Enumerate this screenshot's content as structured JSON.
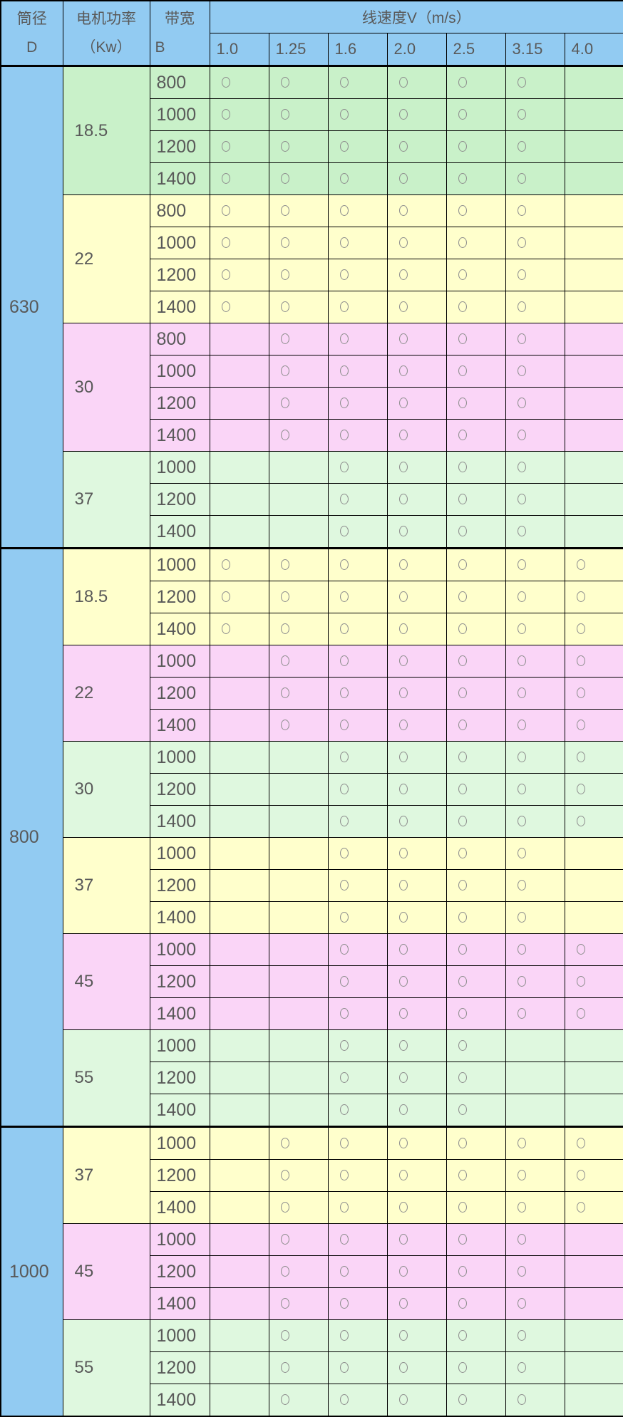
{
  "table": {
    "header": {
      "col1_line1": "筒径",
      "col1_line2": "D",
      "col2_line1": "电机功率",
      "col2_line2": "（Kw）",
      "col3_line1": "带宽",
      "col3_line2": "B",
      "speed_title": "线速度V（m/s）",
      "speeds": [
        "1.0",
        "1.25",
        "1.6",
        "2.0",
        "2.5",
        "3.15",
        "4.0"
      ]
    },
    "available_marker": "circle-outline",
    "groups": [
      {
        "diameter": "630",
        "powers": [
          {
            "power": "18.5",
            "color": "green_dark",
            "rows": [
              {
                "width": "800",
                "marks": [
                  1,
                  1,
                  1,
                  1,
                  1,
                  1,
                  0
                ]
              },
              {
                "width": "1000",
                "marks": [
                  1,
                  1,
                  1,
                  1,
                  1,
                  1,
                  0
                ]
              },
              {
                "width": "1200",
                "marks": [
                  1,
                  1,
                  1,
                  1,
                  1,
                  1,
                  0
                ]
              },
              {
                "width": "1400",
                "marks": [
                  1,
                  1,
                  1,
                  1,
                  1,
                  1,
                  0
                ]
              }
            ]
          },
          {
            "power": "22",
            "color": "yellow",
            "rows": [
              {
                "width": "800",
                "marks": [
                  1,
                  1,
                  1,
                  1,
                  1,
                  1,
                  0
                ]
              },
              {
                "width": "1000",
                "marks": [
                  1,
                  1,
                  1,
                  1,
                  1,
                  1,
                  0
                ]
              },
              {
                "width": "1200",
                "marks": [
                  1,
                  1,
                  1,
                  1,
                  1,
                  1,
                  0
                ]
              },
              {
                "width": "1400",
                "marks": [
                  1,
                  1,
                  1,
                  1,
                  1,
                  1,
                  0
                ]
              }
            ]
          },
          {
            "power": "30",
            "color": "pink",
            "rows": [
              {
                "width": "800",
                "marks": [
                  0,
                  1,
                  1,
                  1,
                  1,
                  1,
                  0
                ]
              },
              {
                "width": "1000",
                "marks": [
                  0,
                  1,
                  1,
                  1,
                  1,
                  1,
                  0
                ]
              },
              {
                "width": "1200",
                "marks": [
                  0,
                  1,
                  1,
                  1,
                  1,
                  1,
                  0
                ]
              },
              {
                "width": "1400",
                "marks": [
                  0,
                  1,
                  1,
                  1,
                  1,
                  1,
                  0
                ]
              }
            ]
          },
          {
            "power": "37",
            "color": "green_light",
            "rows": [
              {
                "width": "1000",
                "marks": [
                  0,
                  0,
                  1,
                  1,
                  1,
                  1,
                  0
                ]
              },
              {
                "width": "1200",
                "marks": [
                  0,
                  0,
                  1,
                  1,
                  1,
                  1,
                  0
                ]
              },
              {
                "width": "1400",
                "marks": [
                  0,
                  0,
                  1,
                  1,
                  1,
                  1,
                  0
                ]
              }
            ]
          }
        ]
      },
      {
        "diameter": "800",
        "powers": [
          {
            "power": "18.5",
            "color": "yellow",
            "rows": [
              {
                "width": "1000",
                "marks": [
                  1,
                  1,
                  1,
                  1,
                  1,
                  1,
                  1
                ]
              },
              {
                "width": "1200",
                "marks": [
                  1,
                  1,
                  1,
                  1,
                  1,
                  1,
                  1
                ]
              },
              {
                "width": "1400",
                "marks": [
                  1,
                  1,
                  1,
                  1,
                  1,
                  1,
                  1
                ]
              }
            ]
          },
          {
            "power": "22",
            "color": "pink",
            "rows": [
              {
                "width": "1000",
                "marks": [
                  0,
                  1,
                  1,
                  1,
                  1,
                  1,
                  1
                ]
              },
              {
                "width": "1200",
                "marks": [
                  0,
                  1,
                  1,
                  1,
                  1,
                  1,
                  1
                ]
              },
              {
                "width": "1400",
                "marks": [
                  0,
                  1,
                  1,
                  1,
                  1,
                  1,
                  1
                ]
              }
            ]
          },
          {
            "power": "30",
            "color": "green_light",
            "rows": [
              {
                "width": "1000",
                "marks": [
                  0,
                  0,
                  1,
                  1,
                  1,
                  1,
                  1
                ]
              },
              {
                "width": "1200",
                "marks": [
                  0,
                  0,
                  1,
                  1,
                  1,
                  1,
                  1
                ]
              },
              {
                "width": "1400",
                "marks": [
                  0,
                  0,
                  1,
                  1,
                  1,
                  1,
                  1
                ]
              }
            ]
          },
          {
            "power": "37",
            "color": "yellow",
            "rows": [
              {
                "width": "1000",
                "marks": [
                  0,
                  0,
                  1,
                  1,
                  1,
                  1,
                  0
                ]
              },
              {
                "width": "1200",
                "marks": [
                  0,
                  0,
                  1,
                  1,
                  1,
                  1,
                  0
                ]
              },
              {
                "width": "1400",
                "marks": [
                  0,
                  0,
                  1,
                  1,
                  1,
                  1,
                  0
                ]
              }
            ]
          },
          {
            "power": "45",
            "color": "pink",
            "rows": [
              {
                "width": "1000",
                "marks": [
                  0,
                  0,
                  1,
                  1,
                  1,
                  1,
                  1
                ]
              },
              {
                "width": "1200",
                "marks": [
                  0,
                  0,
                  1,
                  1,
                  1,
                  1,
                  1
                ]
              },
              {
                "width": "1400",
                "marks": [
                  0,
                  0,
                  1,
                  1,
                  1,
                  1,
                  1
                ]
              }
            ]
          },
          {
            "power": "55",
            "color": "green_light",
            "rows": [
              {
                "width": "1000",
                "marks": [
                  0,
                  0,
                  1,
                  1,
                  1,
                  0,
                  0
                ]
              },
              {
                "width": "1200",
                "marks": [
                  0,
                  0,
                  1,
                  1,
                  1,
                  0,
                  0
                ]
              },
              {
                "width": "1400",
                "marks": [
                  0,
                  0,
                  1,
                  1,
                  1,
                  0,
                  0
                ]
              }
            ]
          }
        ]
      },
      {
        "diameter": "1000",
        "powers": [
          {
            "power": "37",
            "color": "yellow",
            "rows": [
              {
                "width": "1000",
                "marks": [
                  0,
                  1,
                  1,
                  1,
                  1,
                  1,
                  1
                ]
              },
              {
                "width": "1200",
                "marks": [
                  0,
                  1,
                  1,
                  1,
                  1,
                  1,
                  1
                ]
              },
              {
                "width": "1400",
                "marks": [
                  0,
                  1,
                  1,
                  1,
                  1,
                  1,
                  1
                ]
              }
            ]
          },
          {
            "power": "45",
            "color": "pink",
            "rows": [
              {
                "width": "1000",
                "marks": [
                  0,
                  1,
                  1,
                  1,
                  1,
                  1,
                  0
                ]
              },
              {
                "width": "1200",
                "marks": [
                  0,
                  1,
                  1,
                  1,
                  1,
                  1,
                  0
                ]
              },
              {
                "width": "1400",
                "marks": [
                  0,
                  1,
                  1,
                  1,
                  1,
                  1,
                  0
                ]
              }
            ]
          },
          {
            "power": "55",
            "color": "green_light",
            "rows": [
              {
                "width": "1000",
                "marks": [
                  0,
                  1,
                  1,
                  1,
                  1,
                  1,
                  0
                ]
              },
              {
                "width": "1200",
                "marks": [
                  0,
                  1,
                  1,
                  1,
                  1,
                  1,
                  0
                ]
              },
              {
                "width": "1400",
                "marks": [
                  0,
                  1,
                  1,
                  1,
                  1,
                  1,
                  0
                ]
              }
            ]
          }
        ]
      }
    ]
  },
  "colors": {
    "header_blue": "#92CBF2",
    "green_dark": "#C9F1C9",
    "green_light": "#DFF8DF",
    "yellow": "#FFFFCC",
    "pink": "#FAD5F7",
    "border": "#000000",
    "text": "#595959",
    "circle": "#8F8F8F"
  }
}
